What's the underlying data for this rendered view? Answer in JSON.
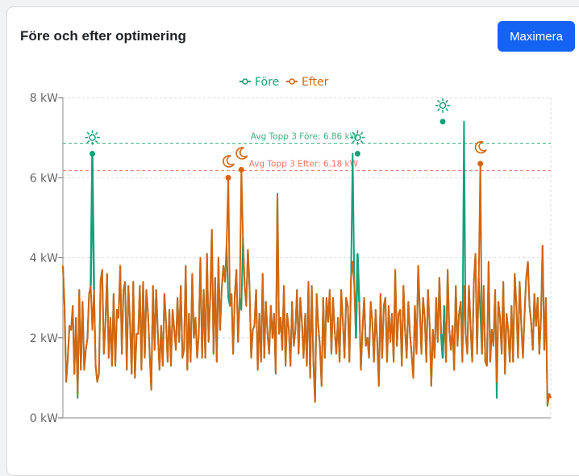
{
  "card": {
    "title": "Före och efter optimering",
    "maximize_label": "Maximera"
  },
  "colors": {
    "before": "#16a07a",
    "after": "#d4650f",
    "button": "#1463f3",
    "ref_before": "#3cb380",
    "ref_after": "#e97760"
  },
  "chart_data": {
    "type": "line",
    "ylim": [
      0,
      8
    ],
    "y_ticks": [
      "0 kW",
      "2 kW",
      "4 kW",
      "6 kW",
      "8 kW"
    ],
    "xlabel": "",
    "ylabel": "",
    "legend": {
      "placement": "top-center"
    },
    "grid": true,
    "series": [
      {
        "name": "Före",
        "color": "#16a07a"
      },
      {
        "name": "Efter",
        "color": "#d4650f"
      }
    ],
    "values_after": [
      3.8,
      2.8,
      0.9,
      1.5,
      2.3,
      2.2,
      2.8,
      1.1,
      2.5,
      0.6,
      3.2,
      1.2,
      2.9,
      1.2,
      1.7,
      2.0,
      3.1,
      3.3,
      2.2,
      3.2,
      1.3,
      0.9,
      1.1,
      3.4,
      3.7,
      1.6,
      2.4,
      3.6,
      1.5,
      2.5,
      1.3,
      3.1,
      1.3,
      2.7,
      2.5,
      3.8,
      1.6,
      3.2,
      3.4,
      1.2,
      3.3,
      2.4,
      1.1,
      3.4,
      1.0,
      2.1,
      2.1,
      3.3,
      1.2,
      3.4,
      1.5,
      3.2,
      2.6,
      1.6,
      0.7,
      3.3,
      1.7,
      3.2,
      2.1,
      1.2,
      2.3,
      1.3,
      3.1,
      2.4,
      1.4,
      2.7,
      1.3,
      2.7,
      2.2,
      1.7,
      3.0,
      1.9,
      3.3,
      1.5,
      1.7,
      3.8,
      1.2,
      2.6,
      1.4,
      3.6,
      2.0,
      2.5,
      1.5,
      2.1,
      4.0,
      1.5,
      3.2,
      1.5,
      4.1,
      1.9,
      3.0,
      4.7,
      1.6,
      3.5,
      1.4,
      4.0,
      2.2,
      3.2,
      3.8,
      3.4,
      4.3,
      3.0,
      2.8,
      3.1,
      1.6,
      3.1,
      3.7,
      1.9,
      3.0,
      2.7,
      4.5,
      3.3,
      2.8,
      4.2,
      3.3,
      1.5,
      2.2,
      2.3,
      3.2,
      1.2,
      2.6,
      1.4,
      3.6,
      1.5,
      2.9,
      2.1,
      1.6,
      2.8,
      2.0,
      2.6,
      1.1,
      5.6,
      2.1,
      2.5,
      1.7,
      3.3,
      1.3,
      2.6,
      2.2,
      1.3,
      2.9,
      1.8,
      2.2,
      3.2,
      1.6,
      3.0,
      2.4,
      1.5,
      2.6,
      1.3,
      3.4,
      1.0,
      3.3,
      1.4,
      0.4,
      3.1,
      2.3,
      1.8,
      0.8,
      3.0,
      1.5,
      3.0,
      2.4,
      3.2,
      1.6,
      3.0,
      2.2,
      1.6,
      2.5,
      1.4,
      3.2,
      2.4,
      1.5,
      3.0,
      2.8,
      1.4,
      3.5,
      3.9,
      3.3,
      2.0,
      4.1,
      2.9,
      1.2,
      2.2,
      3.0,
      1.8,
      2.0,
      1.5,
      2.9,
      2.4,
      1.4,
      2.7,
      1.9,
      0.8,
      3.1,
      1.5,
      2.8,
      3.0,
      1.4,
      2.8,
      1.9,
      2.6,
      1.4,
      3.7,
      1.8,
      2.6,
      2.7,
      1.3,
      3.3,
      2.2,
      1.5,
      2.9,
      2.1,
      1.6,
      1.0,
      2.8,
      1.6,
      3.8,
      2.7,
      1.6,
      3.0,
      2.5,
      1.4,
      3.2,
      2.3,
      0.8,
      2.2,
      1.5,
      3.0,
      1.9,
      3.5,
      2.1,
      1.5,
      2.8,
      1.4,
      3.7,
      2.2,
      1.7,
      2.3,
      1.2,
      3.3,
      1.8,
      2.6,
      2.9,
      1.4,
      3.3,
      2.1,
      1.6,
      3.3,
      2.3,
      1.4,
      3.4,
      4.1,
      1.6,
      3.5,
      2.6,
      1.6,
      3.3,
      1.4,
      1.3,
      3.9,
      1.4,
      2.2,
      1.8,
      3.2,
      0.9,
      2.9,
      2.5,
      1.6,
      3.4,
      1.1,
      2.6,
      2.2,
      1.4,
      2.8,
      1.4,
      3.6,
      2.8,
      1.5,
      3.4,
      2.3,
      1.5,
      2.6,
      3.5,
      3.9,
      2.8,
      2.4,
      1.7,
      3.1,
      2.3,
      3.0,
      1.6,
      2.5,
      4.3,
      1.7,
      3.0,
      0.3,
      0.6,
      0.5
    ],
    "values_before": [
      3.8,
      2.8,
      0.9,
      1.5,
      2.3,
      2.2,
      2.8,
      1.1,
      2.5,
      0.5,
      3.2,
      1.2,
      2.9,
      1.2,
      1.7,
      2.0,
      3.1,
      3.3,
      6.6,
      3.2,
      1.3,
      0.9,
      1.1,
      3.4,
      3.7,
      1.6,
      2.4,
      3.6,
      1.5,
      2.5,
      1.3,
      3.1,
      1.3,
      2.7,
      2.5,
      3.8,
      1.6,
      3.2,
      3.4,
      1.2,
      3.3,
      2.4,
      1.1,
      3.4,
      1.0,
      2.1,
      2.1,
      3.3,
      1.2,
      3.4,
      1.5,
      3.2,
      2.6,
      1.6,
      0.7,
      3.3,
      1.7,
      3.2,
      2.1,
      1.2,
      2.3,
      1.3,
      3.1,
      2.4,
      1.4,
      2.7,
      1.3,
      2.7,
      2.2,
      1.7,
      3.0,
      1.9,
      3.3,
      1.5,
      1.7,
      3.8,
      1.2,
      2.6,
      1.4,
      3.6,
      2.0,
      2.5,
      1.5,
      2.1,
      4.0,
      1.5,
      3.2,
      1.5,
      4.1,
      1.9,
      3.0,
      4.7,
      1.6,
      3.5,
      1.4,
      4.0,
      2.2,
      3.2,
      3.8,
      3.4,
      4.3,
      3.0,
      2.8,
      3.1,
      1.6,
      3.1,
      3.7,
      1.9,
      3.0,
      2.7,
      4.5,
      3.3,
      2.8,
      4.2,
      3.3,
      1.5,
      2.2,
      2.3,
      3.2,
      1.2,
      2.6,
      1.4,
      3.6,
      1.5,
      2.9,
      2.1,
      1.6,
      2.8,
      2.0,
      2.6,
      1.1,
      5.6,
      2.1,
      2.5,
      1.7,
      3.3,
      1.3,
      2.6,
      2.2,
      1.3,
      2.9,
      1.8,
      2.2,
      3.2,
      1.6,
      3.0,
      2.4,
      1.5,
      2.6,
      1.3,
      3.4,
      1.0,
      3.3,
      1.4,
      0.4,
      3.1,
      2.3,
      1.8,
      0.8,
      3.0,
      1.5,
      3.0,
      2.4,
      3.2,
      1.6,
      3.0,
      2.2,
      1.6,
      2.5,
      1.4,
      3.2,
      2.4,
      1.5,
      3.0,
      2.8,
      1.4,
      3.5,
      6.6,
      3.3,
      2.0,
      4.1,
      2.9,
      1.2,
      2.2,
      3.0,
      1.8,
      2.0,
      1.5,
      2.9,
      2.4,
      1.4,
      2.7,
      1.9,
      0.8,
      3.1,
      1.5,
      2.8,
      3.0,
      1.4,
      2.8,
      1.9,
      2.6,
      1.4,
      3.7,
      1.8,
      2.6,
      2.7,
      1.3,
      3.3,
      2.2,
      1.5,
      2.9,
      2.1,
      1.6,
      1.0,
      2.8,
      1.6,
      3.8,
      2.7,
      1.6,
      3.0,
      2.5,
      1.4,
      3.2,
      2.3,
      0.8,
      2.2,
      1.5,
      3.0,
      1.9,
      3.5,
      2.1,
      1.5,
      2.8,
      1.4,
      3.7,
      2.2,
      1.7,
      2.3,
      1.2,
      3.3,
      1.8,
      2.6,
      2.9,
      1.4,
      7.4,
      2.1,
      1.6,
      3.3,
      2.3,
      1.4,
      3.4,
      4.1,
      1.6,
      3.5,
      2.6,
      1.6,
      3.3,
      1.4,
      1.3,
      3.9,
      1.4,
      2.2,
      1.8,
      3.2,
      0.5,
      2.9,
      2.5,
      1.6,
      3.4,
      1.1,
      2.6,
      2.2,
      1.4,
      2.8,
      1.4,
      3.6,
      2.8,
      1.5,
      3.4,
      2.3,
      1.5,
      2.6,
      3.5,
      3.9,
      2.8,
      2.4,
      1.7,
      3.1,
      2.3,
      3.0,
      1.6,
      2.5,
      4.3,
      1.7,
      3.0,
      0.3,
      0.6,
      0.5
    ],
    "after_spikes": [
      {
        "index": 101,
        "value": 6.0
      },
      {
        "index": 109,
        "value": 6.2
      },
      {
        "index": 255,
        "value": 6.35
      }
    ],
    "markers": [
      {
        "series": "Före",
        "index": 18,
        "value": 6.6,
        "icon": "sun-icon"
      },
      {
        "series": "Efter",
        "index": 101,
        "value": 6.0,
        "icon": "moon-icon"
      },
      {
        "series": "Efter",
        "index": 109,
        "value": 6.2,
        "icon": "moon-icon"
      },
      {
        "series": "Före",
        "index": 180,
        "value": 6.6,
        "icon": "sun-icon"
      },
      {
        "series": "Före",
        "index": 232,
        "value": 7.4,
        "icon": "sun-icon"
      },
      {
        "series": "Efter",
        "index": 255,
        "value": 6.35,
        "icon": "moon-icon"
      }
    ],
    "reference_lines": [
      {
        "label": "Avg Topp 3 Före: 6.86 kW",
        "value": 6.86,
        "series": "Före"
      },
      {
        "label": "Avg Topp 3 Efter: 6.18 kW",
        "value": 6.18,
        "series": "Efter"
      }
    ]
  }
}
